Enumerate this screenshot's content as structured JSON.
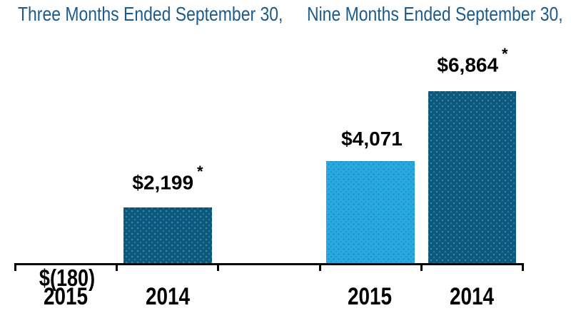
{
  "chart_data": {
    "type": "bar",
    "grid": false,
    "legend": false,
    "groups": [
      {
        "period": "Three Months Ended September 30,",
        "bars": [
          {
            "year": "2015",
            "value": -180,
            "value_label": "$(180)",
            "mark": "",
            "color_key": "dark",
            "bar_drawn": false
          },
          {
            "year": "2014",
            "value": 2199,
            "value_label": "$2,199",
            "mark": "*",
            "color_key": "dark",
            "bar_drawn": true
          }
        ]
      },
      {
        "period": "Nine Months Ended September 30,",
        "bars": [
          {
            "year": "2015",
            "value": 4071,
            "value_label": "$4,071",
            "mark": "",
            "color_key": "light",
            "bar_drawn": true
          },
          {
            "year": "2014",
            "value": 6864,
            "value_label": "$6,864",
            "mark": "*",
            "color_key": "dark",
            "bar_drawn": true
          }
        ]
      }
    ],
    "colors": {
      "bar_dark": "#0C5782",
      "bar_light": "#29A9E0",
      "title_text": "#1C5B8C",
      "label_text": "#000000",
      "axis": "#000000"
    },
    "axis": {
      "baseline_value": 0,
      "tick_count": 6
    }
  }
}
